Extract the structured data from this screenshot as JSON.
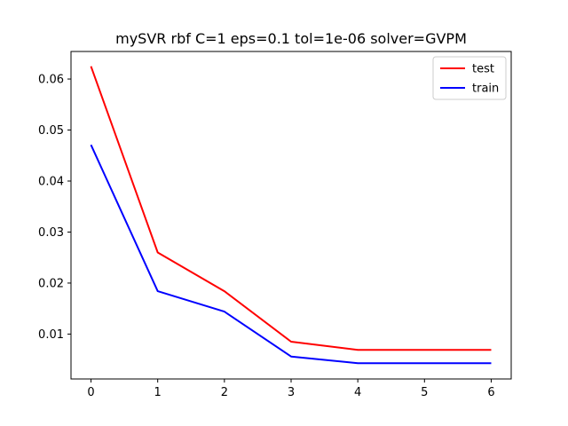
{
  "chart_data": {
    "type": "line",
    "title": "mySVR rbf C=1 eps=0.1 tol=1e-06 solver=GVPM",
    "xlabel": "",
    "ylabel": "",
    "x": [
      0,
      1,
      2,
      3,
      4,
      5,
      6
    ],
    "xlim": [
      -0.3,
      6.3
    ],
    "ylim": [
      0.0012,
      0.0654
    ],
    "xticks": [
      0,
      1,
      2,
      3,
      4,
      5,
      6
    ],
    "xtick_labels": [
      "0",
      "1",
      "2",
      "3",
      "4",
      "5",
      "6"
    ],
    "yticks": [
      0.01,
      0.02,
      0.03,
      0.04,
      0.05,
      0.06
    ],
    "ytick_labels": [
      "0.01",
      "0.02",
      "0.03",
      "0.04",
      "0.05",
      "0.06"
    ],
    "grid": false,
    "legend_position": "top-right",
    "series": [
      {
        "name": "test",
        "color": "#ff0000",
        "values": [
          0.0625,
          0.026,
          0.0184,
          0.0085,
          0.0069,
          0.0069,
          0.0069
        ]
      },
      {
        "name": "train",
        "color": "#0000ff",
        "values": [
          0.0471,
          0.0184,
          0.0144,
          0.0056,
          0.0043,
          0.0043,
          0.0043
        ]
      }
    ]
  }
}
